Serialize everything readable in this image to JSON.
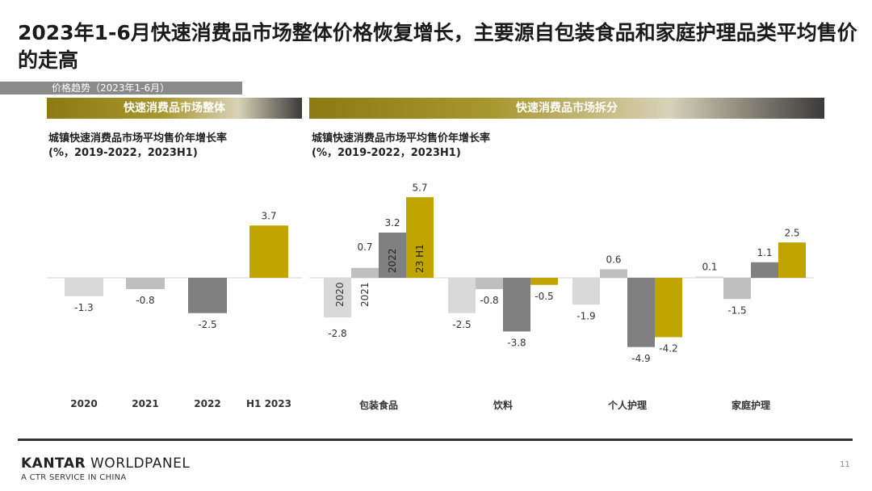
{
  "title": "2023年1-6月快速消费品市场整体价格恢复增长，主要源自包装食品和家庭护理品类平均售价的走高",
  "subtag": "价格趋势（2023年1-6月）",
  "banners": {
    "left": "快速消费品市场整体",
    "right": "快速消费品市场拆分"
  },
  "left_chart_title": [
    "城镇快速消费品市场平均售价年增长率",
    "(%，2019-2022，2023H1)"
  ],
  "right_chart_title": [
    "城镇快速消费品市场平均售价年增长率",
    "(%，2019-2022，2023H1)"
  ],
  "colors": {
    "2020": "#d9d9d9",
    "2021": "#bfbfbf",
    "2022": "#808080",
    "H1 2023": "#c0a400"
  },
  "chart_data": [
    {
      "type": "bar",
      "title": "城镇快速消费品市场平均售价年增长率",
      "subtitle": "(%，2019-2022，2023H1)",
      "categories": [
        "2020",
        "2021",
        "2022",
        "H1 2023"
      ],
      "values": [
        -1.3,
        -0.8,
        -2.5,
        3.7
      ],
      "value_labels": [
        "-1.3",
        "-0.8",
        "-2.5",
        "3.7"
      ]
    },
    {
      "type": "bar",
      "title": "城镇快速消费品市场平均售价年增长率",
      "subtitle": "(%，2019-2022，2023H1)",
      "categories": [
        "包装食品",
        "饮料",
        "个人护理",
        "家庭护理"
      ],
      "in_bar_labels": [
        "2020",
        "2021",
        "2022",
        "23 H1"
      ],
      "series": [
        {
          "name": "2020",
          "values": [
            -2.8,
            -2.5,
            -1.9,
            0.1
          ],
          "labels": [
            "-2.8",
            "-2.5",
            "-1.9",
            "0.1"
          ]
        },
        {
          "name": "2021",
          "values": [
            0.7,
            -0.8,
            0.6,
            -1.5
          ],
          "labels": [
            "0.7",
            "-0.8",
            "0.6",
            "-1.5"
          ]
        },
        {
          "name": "2022",
          "values": [
            3.2,
            -3.8,
            -4.9,
            1.1
          ],
          "labels": [
            "3.2",
            "-3.8",
            "-4.9",
            "1.1"
          ]
        },
        {
          "name": "H1 2023",
          "values": [
            5.7,
            -0.5,
            -4.2,
            2.5
          ],
          "labels": [
            "5.7",
            "-0.5",
            "-4.2",
            "2.5"
          ]
        }
      ]
    }
  ],
  "footer": {
    "brand_bold": "KANTAR",
    "brand_rest": " WORLDPANEL",
    "sub": "A CTR SERVICE IN CHINA",
    "page": "11"
  }
}
